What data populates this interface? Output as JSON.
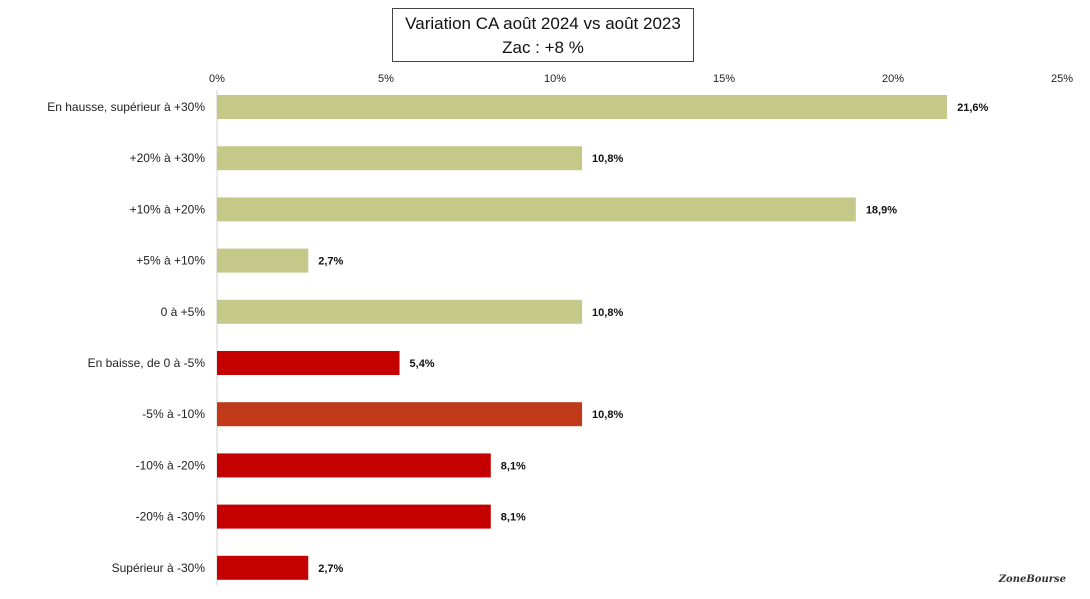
{
  "chart_data": {
    "type": "bar",
    "orientation": "horizontal",
    "title_line1": "Variation CA août 2024 vs août 2023",
    "title_line2": "Zac : +8 %",
    "xlim": [
      0,
      25
    ],
    "ticks": [
      "0%",
      "5%",
      "10%",
      "15%",
      "20%",
      "25%"
    ],
    "tick_values": [
      0,
      5,
      10,
      15,
      20,
      25
    ],
    "categories": [
      "En hausse, supérieur à +30%",
      "+20% à +30%",
      "+10% à +20%",
      "+5% à +10%",
      "0 à +5%",
      "En baisse, de 0 à -5%",
      "-5% à -10%",
      "-10% à -20%",
      "-20% à -30%",
      "Supérieur à -30%"
    ],
    "values": [
      21.6,
      10.8,
      18.9,
      2.7,
      10.8,
      5.4,
      10.8,
      8.1,
      8.1,
      2.7
    ],
    "labels": [
      "21,6%",
      "10,8%",
      "18,9%",
      "2,7%",
      "10,8%",
      "5,4%",
      "10,8%",
      "8,1%",
      "8,1%",
      "2,7%"
    ],
    "colors": [
      "#c4c98a",
      "#c4c98a",
      "#c4c98a",
      "#c4c98a",
      "#c4c98a",
      "#c40000",
      "#c03a1a",
      "#c40000",
      "#c40000",
      "#c40000"
    ],
    "grid": false,
    "legend": "none"
  },
  "signature": "ZoneBourse"
}
